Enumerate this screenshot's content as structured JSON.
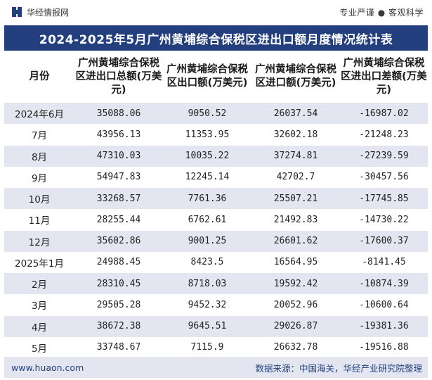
{
  "header": {
    "brand": "华经情报网",
    "slogan": "专业严谨 ● 客观科学"
  },
  "title": "2024-2025年5月广州黄埔综合保税区进出口额月度情况统计表",
  "table": {
    "columns": [
      "月份",
      "广州黄埔综合保税区进出口总额(万美元)",
      "广州黄埔综合保税区出口额(万美元)",
      "广州黄埔综合保税区进口额(万美元)",
      "广州黄埔综合保税区进出口差额(万美元)"
    ],
    "rows": [
      [
        "2024年6月",
        "35088.06",
        "9050.52",
        "26037.54",
        "-16987.02"
      ],
      [
        "7月",
        "43956.13",
        "11353.95",
        "32602.18",
        "-21248.23"
      ],
      [
        "8月",
        "47310.03",
        "10035.22",
        "37274.81",
        "-27239.59"
      ],
      [
        "9月",
        "54947.83",
        "12245.14",
        "42702.7",
        "-30457.56"
      ],
      [
        "10月",
        "33268.57",
        "7761.36",
        "25507.21",
        "-17745.85"
      ],
      [
        "11月",
        "28255.44",
        "6762.61",
        "21492.83",
        "-14730.22"
      ],
      [
        "12月",
        "35602.86",
        "9001.25",
        "26601.62",
        "-17600.37"
      ],
      [
        "2025年1月",
        "24988.45",
        "8423.5",
        "16564.95",
        "-8141.45"
      ],
      [
        "2月",
        "28310.45",
        "8718.03",
        "19592.42",
        "-10874.39"
      ],
      [
        "3月",
        "29505.28",
        "9452.32",
        "20052.96",
        "-10600.64"
      ],
      [
        "4月",
        "38672.38",
        "9645.51",
        "29026.87",
        "-19381.36"
      ],
      [
        "5月",
        "33748.67",
        "7115.9",
        "26632.78",
        "-19516.88"
      ]
    ]
  },
  "footer": {
    "url": "www.huaon.com",
    "source": "数据来源：中国海关，华经产业研究院整理"
  },
  "colors": {
    "title_bg": "#233f7d",
    "stripe": "#e3e6f0",
    "logo": "#233f7d"
  },
  "icons": {
    "logo": "huajing-logo-icon"
  }
}
